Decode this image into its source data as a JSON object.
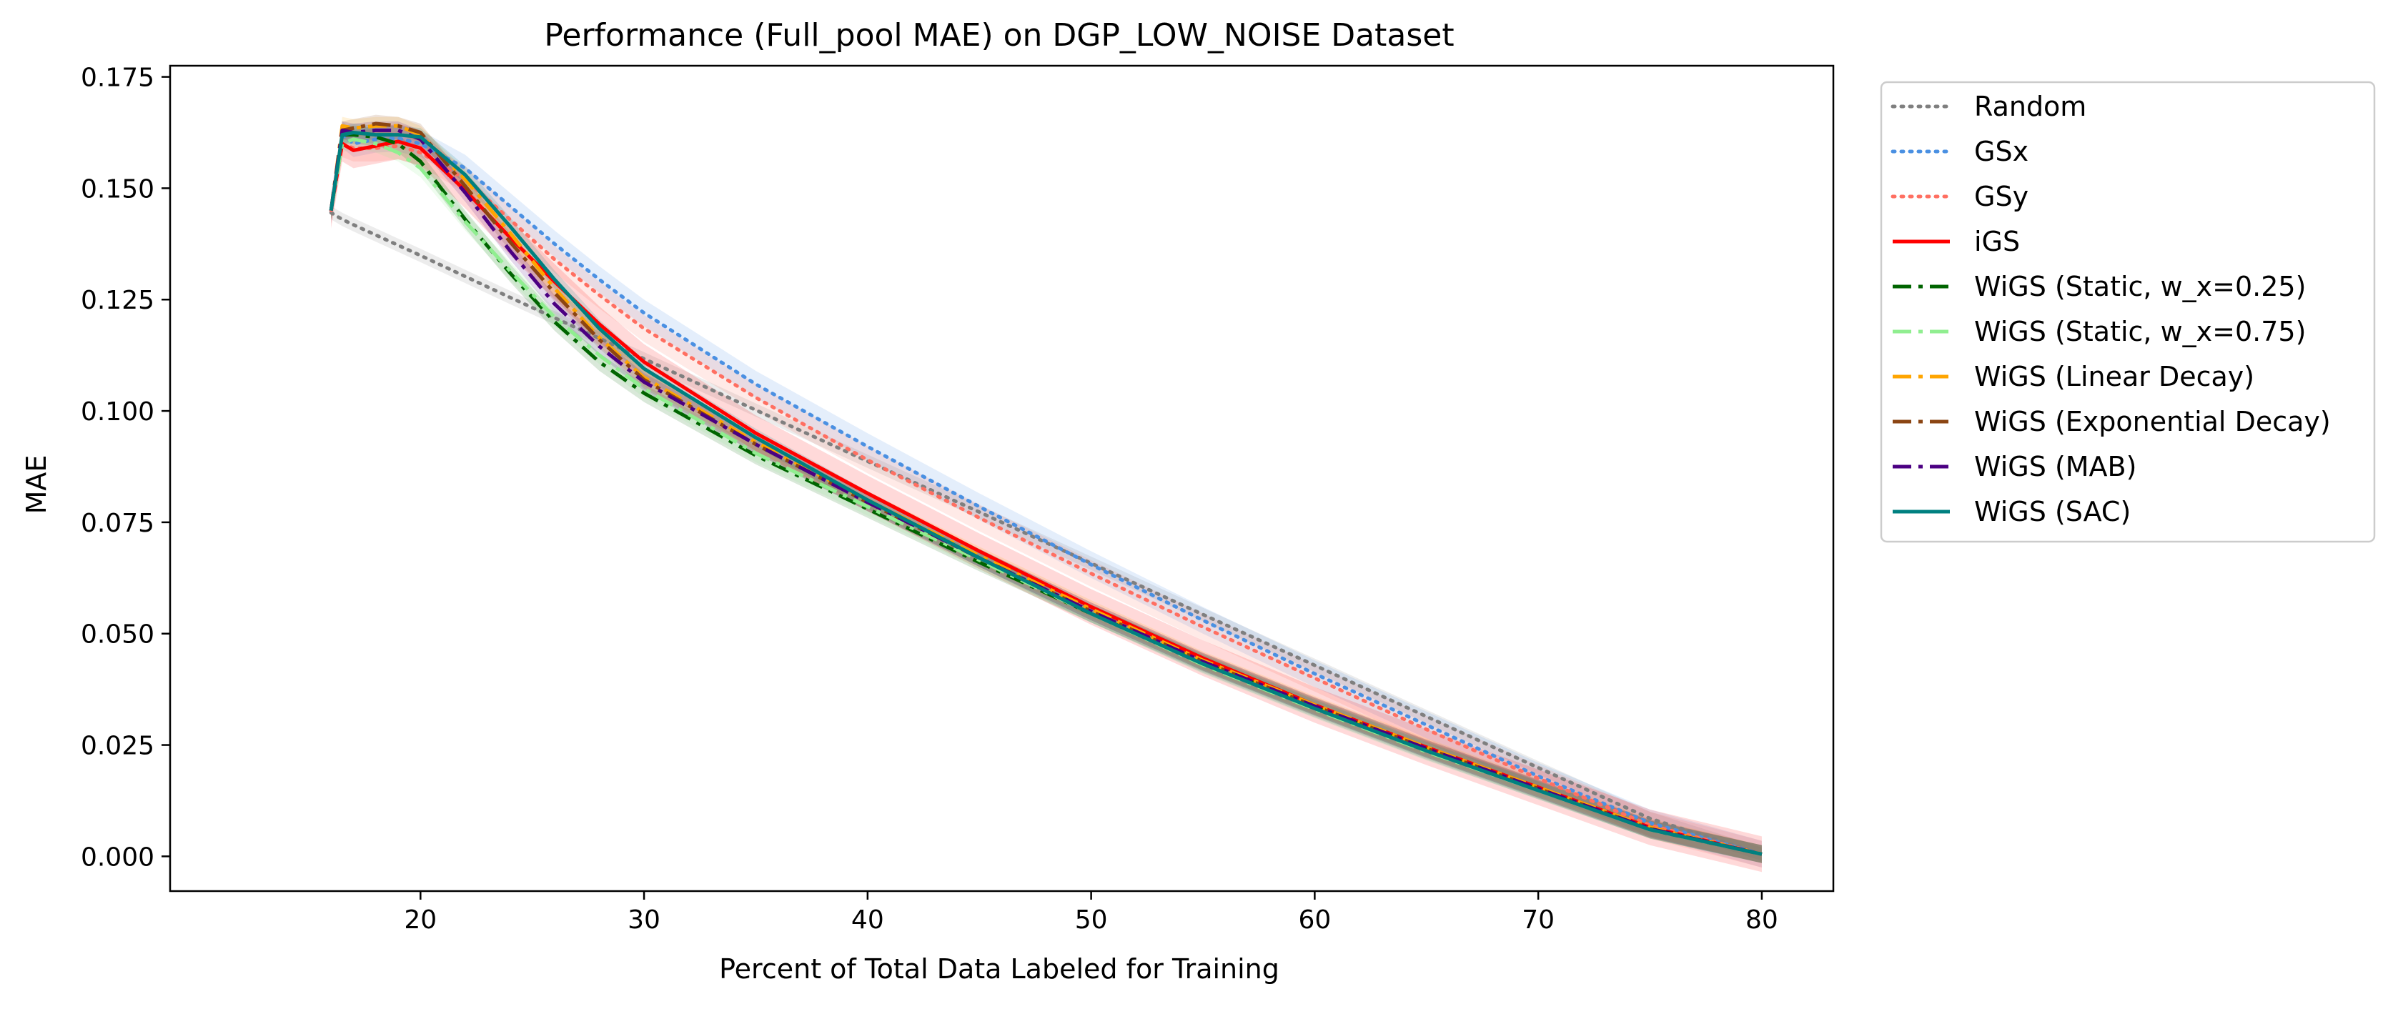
{
  "chart_data": {
    "type": "line",
    "title": "Performance (Full_pool MAE) on DGP_LOW_NOISE Dataset",
    "xlabel": "Percent of Total Data Labeled for Training",
    "ylabel": "MAE",
    "xlim": [
      8.8,
      83.2
    ],
    "ylim": [
      -0.0078,
      0.1775
    ],
    "xticks": [
      20,
      30,
      40,
      50,
      60,
      70,
      80
    ],
    "xtick_labels": [
      "20",
      "30",
      "40",
      "50",
      "60",
      "70",
      "80"
    ],
    "yticks": [
      0.0,
      0.025,
      0.05,
      0.075,
      0.1,
      0.125,
      0.15,
      0.175
    ],
    "ytick_labels": [
      "0.000",
      "0.025",
      "0.050",
      "0.075",
      "0.100",
      "0.125",
      "0.150",
      "0.175"
    ],
    "grid": false,
    "legend_position": "outside-right-top",
    "x": [
      16,
      16.5,
      17,
      18,
      19,
      20,
      22,
      24,
      26,
      28,
      30,
      35,
      40,
      45,
      50,
      55,
      60,
      65,
      70,
      75,
      80
    ],
    "series": [
      {
        "name": "Random",
        "color": "#7f7f7f",
        "style": "dotted",
        "band": 0.0015,
        "values": [
          0.1445,
          0.143,
          0.1418,
          0.1395,
          0.1372,
          0.1349,
          0.1302,
          0.1255,
          0.1209,
          0.1163,
          0.1117,
          0.1002,
          0.0887,
          0.0773,
          0.0658,
          0.0543,
          0.0429,
          0.0314,
          0.0199,
          0.0085,
          0.0005
        ]
      },
      {
        "name": "GSx",
        "color": "#4a90e2",
        "style": "dotted",
        "band": 0.003,
        "values": [
          0.145,
          0.162,
          0.16,
          0.161,
          0.1612,
          0.16,
          0.1545,
          0.146,
          0.1375,
          0.1295,
          0.122,
          0.106,
          0.092,
          0.0785,
          0.0655,
          0.053,
          0.041,
          0.0295,
          0.018,
          0.0075,
          0.0005
        ]
      },
      {
        "name": "GSy",
        "color": "#ff6f61",
        "style": "dotted",
        "band": 0.003,
        "values": [
          0.145,
          0.16,
          0.159,
          0.159,
          0.1595,
          0.158,
          0.152,
          0.143,
          0.134,
          0.126,
          0.1185,
          0.103,
          0.089,
          0.076,
          0.0635,
          0.0515,
          0.04,
          0.0285,
          0.0175,
          0.007,
          0.0005
        ]
      },
      {
        "name": "iGS",
        "color": "#ff0000",
        "style": "solid",
        "band": 0.004,
        "values": [
          0.145,
          0.16,
          0.1585,
          0.1595,
          0.1605,
          0.159,
          0.1495,
          0.139,
          0.129,
          0.1195,
          0.111,
          0.095,
          0.0815,
          0.0685,
          0.056,
          0.0445,
          0.034,
          0.0245,
          0.0155,
          0.0065,
          0.0005
        ]
      },
      {
        "name": "WiGS (Static, w_x=0.25)",
        "color": "#006400",
        "style": "dashdot",
        "band": 0.002,
        "values": [
          0.145,
          0.162,
          0.162,
          0.1615,
          0.16,
          0.156,
          0.143,
          0.131,
          0.12,
          0.111,
          0.104,
          0.09,
          0.078,
          0.066,
          0.0545,
          0.0435,
          0.0335,
          0.024,
          0.015,
          0.006,
          0.0005
        ]
      },
      {
        "name": "WiGS (Static, w_x=0.75)",
        "color": "#90ee90",
        "style": "dashdot",
        "band": 0.002,
        "values": [
          0.145,
          0.16,
          0.161,
          0.16,
          0.158,
          0.1545,
          0.1425,
          0.1315,
          0.121,
          0.1125,
          0.105,
          0.0905,
          0.0785,
          0.0665,
          0.0545,
          0.043,
          0.033,
          0.0235,
          0.0148,
          0.006,
          0.0005
        ]
      },
      {
        "name": "WiGS (Linear Decay)",
        "color": "#ffa500",
        "style": "dashdot",
        "band": 0.002,
        "values": [
          0.145,
          0.164,
          0.1635,
          0.164,
          0.164,
          0.162,
          0.152,
          0.14,
          0.1275,
          0.1165,
          0.1075,
          0.093,
          0.08,
          0.0675,
          0.0555,
          0.044,
          0.034,
          0.0245,
          0.0155,
          0.0065,
          0.0005
        ]
      },
      {
        "name": "WiGS (Exponential Decay)",
        "color": "#8b4513",
        "style": "dashdot",
        "band": 0.002,
        "values": [
          0.145,
          0.163,
          0.1635,
          0.1645,
          0.164,
          0.1625,
          0.1505,
          0.138,
          0.1265,
          0.116,
          0.107,
          0.0925,
          0.0795,
          0.067,
          0.055,
          0.0437,
          0.0337,
          0.0242,
          0.0152,
          0.0062,
          0.0005
        ]
      },
      {
        "name": "WiGS (MAB)",
        "color": "#4b0082",
        "style": "dashdot",
        "band": 0.002,
        "values": [
          0.145,
          0.163,
          0.1625,
          0.163,
          0.163,
          0.161,
          0.149,
          0.136,
          0.124,
          0.1145,
          0.1065,
          0.0925,
          0.0795,
          0.067,
          0.055,
          0.0437,
          0.0337,
          0.0242,
          0.0152,
          0.0062,
          0.0005
        ]
      },
      {
        "name": "WiGS (SAC)",
        "color": "#008080",
        "style": "solid",
        "band": 0.002,
        "values": [
          0.145,
          0.162,
          0.1625,
          0.162,
          0.162,
          0.1615,
          0.153,
          0.1415,
          0.1295,
          0.1185,
          0.1095,
          0.094,
          0.08,
          0.067,
          0.0545,
          0.0432,
          0.0332,
          0.0237,
          0.0148,
          0.006,
          0.0005
        ]
      }
    ]
  }
}
